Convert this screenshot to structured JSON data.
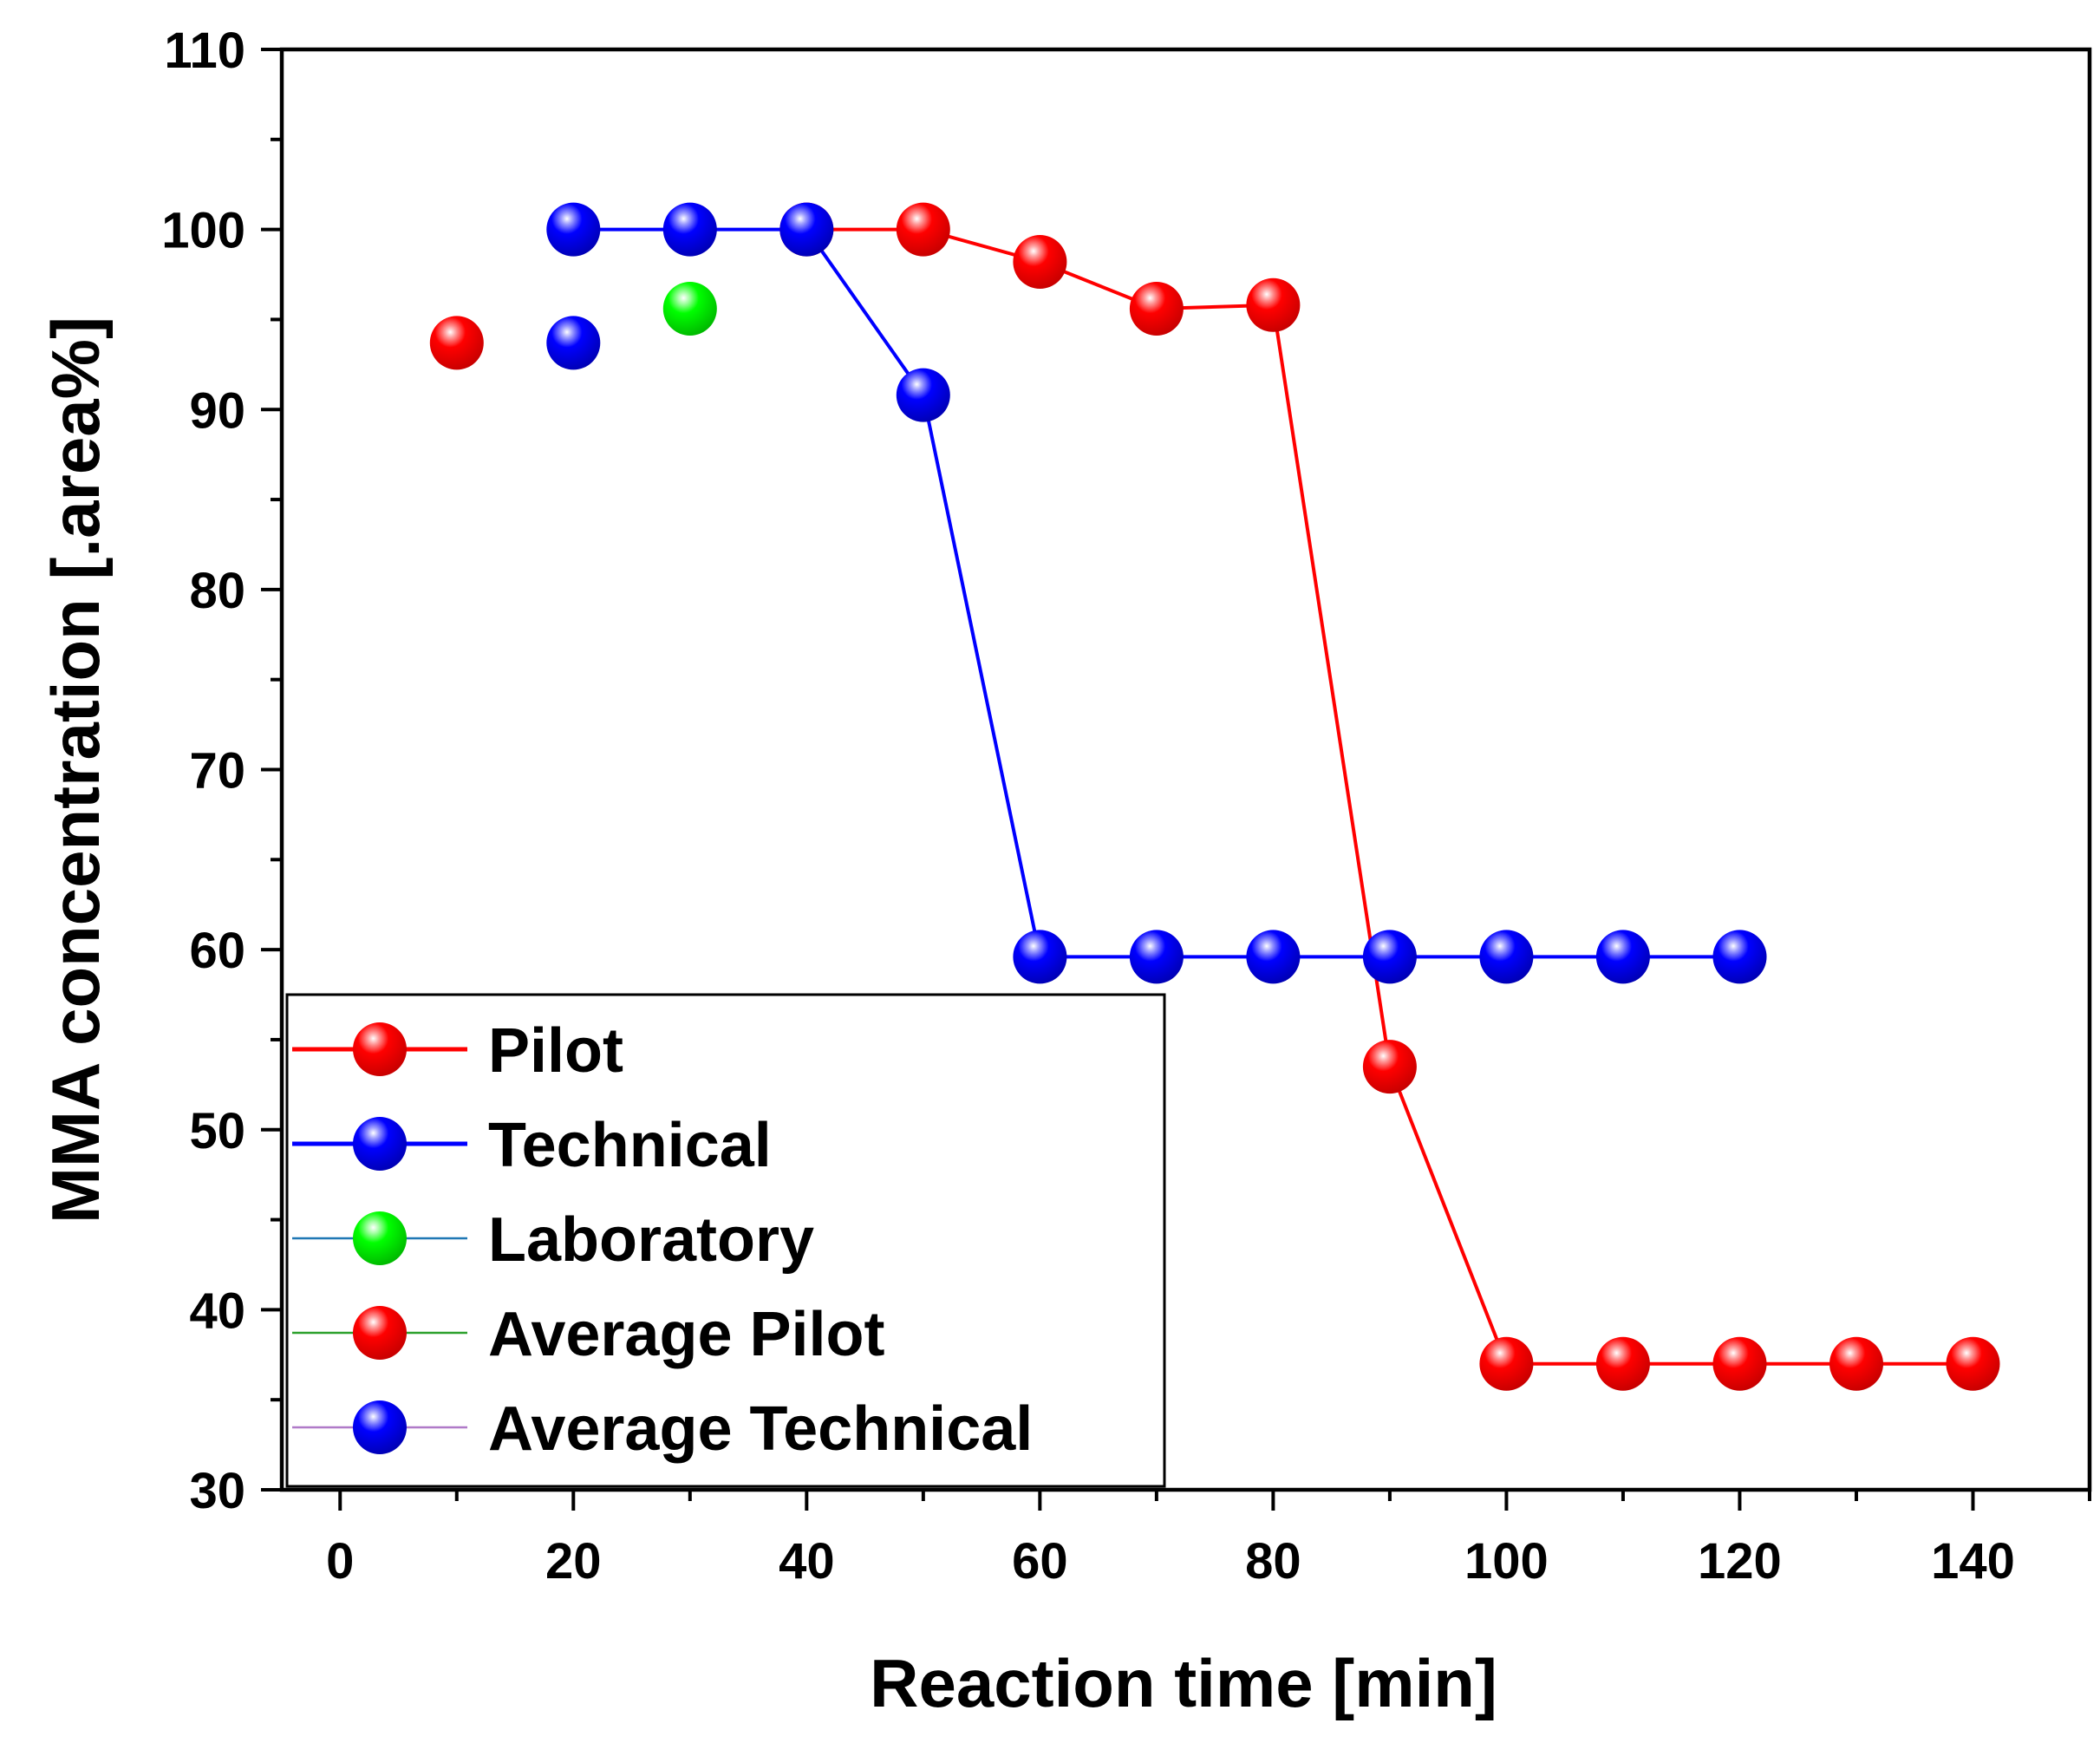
{
  "chart_data": {
    "type": "line",
    "xlabel": "Reaction time [min]",
    "ylabel": "MMA concentration [.area%]",
    "xlim": [
      -5,
      150
    ],
    "ylim": [
      30,
      110
    ],
    "x_ticks": [
      0,
      20,
      40,
      60,
      80,
      100,
      120,
      140
    ],
    "y_ticks": [
      30,
      40,
      50,
      60,
      70,
      80,
      90,
      100,
      110
    ],
    "legend_position": "bottom-left",
    "grid": false,
    "series": [
      {
        "name": "Pilot",
        "color": "#ff0000",
        "line_color": "#ff0000",
        "connected": true,
        "x": [
          40,
          50,
          60,
          70,
          80,
          90,
          100,
          110,
          120,
          130,
          140
        ],
        "y": [
          100,
          100,
          98.2,
          95.6,
          95.8,
          53.5,
          37,
          37,
          37,
          37,
          37
        ]
      },
      {
        "name": "Technical",
        "color": "#0000ff",
        "line_color": "#0000ff",
        "connected": true,
        "x": [
          20,
          30,
          40,
          50,
          60,
          70,
          80,
          90,
          100,
          110,
          120
        ],
        "y": [
          100,
          100,
          100,
          90.8,
          59.6,
          59.6,
          59.6,
          59.6,
          59.6,
          59.6,
          59.6
        ]
      },
      {
        "name": "Laboratory",
        "color": "#00ff00",
        "line_color": "#1f77b4",
        "connected": false,
        "x": [
          30
        ],
        "y": [
          95.6
        ]
      },
      {
        "name": "Average Pilot",
        "color": "#ff0000",
        "line_color": "#2ca02c",
        "connected": false,
        "x": [
          10
        ],
        "y": [
          93.7
        ]
      },
      {
        "name": "Average Technical",
        "color": "#0000ff",
        "line_color": "#b07ac8",
        "connected": false,
        "x": [
          20
        ],
        "y": [
          93.7
        ]
      }
    ]
  }
}
